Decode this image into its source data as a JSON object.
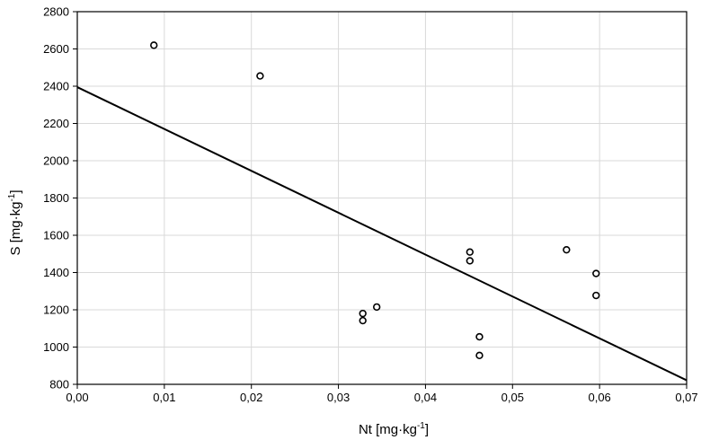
{
  "chart_data": {
    "type": "scatter",
    "xlabel": "Nt [mg·kg",
    "xlabel_sup": "-1",
    "xlabel_end": "]",
    "ylabel": "S [mg·kg",
    "ylabel_sup": "-1",
    "ylabel_end": "]",
    "xlim": [
      0,
      0.07
    ],
    "ylim": [
      800,
      2800
    ],
    "x_ticks": [
      0,
      0.01,
      0.02,
      0.03,
      0.04,
      0.05,
      0.06,
      0.07
    ],
    "x_tick_labels": [
      "0,00",
      "0,01",
      "0,02",
      "0,03",
      "0,04",
      "0,05",
      "0,06",
      "0,07"
    ],
    "y_ticks": [
      800,
      1000,
      1200,
      1400,
      1600,
      1800,
      2000,
      2200,
      2400,
      2600,
      2800
    ],
    "y_tick_labels": [
      "800",
      "1000",
      "1200",
      "1400",
      "1600",
      "1800",
      "2000",
      "2200",
      "2400",
      "2600",
      "2800"
    ],
    "grid": true,
    "points": [
      {
        "x": 0.0088,
        "y": 2620
      },
      {
        "x": 0.021,
        "y": 2455
      },
      {
        "x": 0.0328,
        "y": 1180
      },
      {
        "x": 0.0328,
        "y": 1142
      },
      {
        "x": 0.0344,
        "y": 1215
      },
      {
        "x": 0.0451,
        "y": 1510
      },
      {
        "x": 0.0451,
        "y": 1463
      },
      {
        "x": 0.0462,
        "y": 1055
      },
      {
        "x": 0.0462,
        "y": 955
      },
      {
        "x": 0.0562,
        "y": 1522
      },
      {
        "x": 0.0596,
        "y": 1395
      },
      {
        "x": 0.0596,
        "y": 1277
      }
    ],
    "fit_line": {
      "x": [
        0,
        0.07
      ],
      "y": [
        2395,
        822
      ]
    }
  }
}
